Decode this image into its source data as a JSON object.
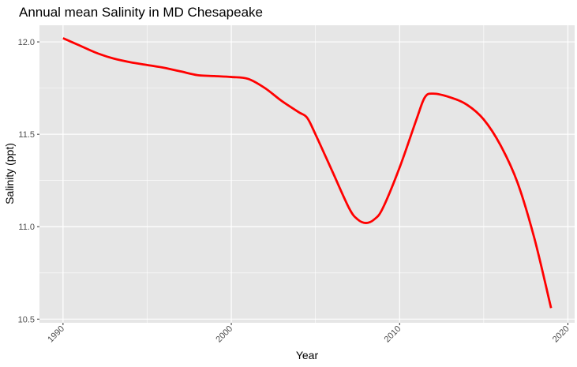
{
  "chart_data": {
    "type": "line",
    "title": "Annual mean Salinity in MD Chesapeake",
    "xlabel": "Year",
    "ylabel": "Salinity (ppt)",
    "xlim": [
      1988.6,
      2020.4
    ],
    "ylim": [
      10.48,
      12.09
    ],
    "x_ticks": [
      1990,
      2000,
      2010,
      2020
    ],
    "x_minor_ticks": [
      1995,
      2005,
      2015
    ],
    "y_ticks": [
      10.5,
      11.0,
      11.5,
      12.0
    ],
    "y_minor_ticks": [
      10.75,
      11.25,
      11.75
    ],
    "x_tick_labels": [
      "1990",
      "2000",
      "2010",
      "2020"
    ],
    "y_tick_labels": [
      "10.5",
      "11.0",
      "11.5",
      "12.0"
    ],
    "grid": true,
    "legend": "none",
    "colors": {
      "panel": "#e6e6e6",
      "grid": "#ffffff",
      "line": "#ff0000"
    },
    "series": [
      {
        "x": [
          1990,
          1991,
          1992,
          1993,
          1994,
          1995,
          1996,
          1997,
          1998,
          1999,
          2000,
          2001,
          2002,
          2003,
          2004,
          2004.5,
          2005,
          2006,
          2007,
          2007.5,
          2008,
          2008.5,
          2009,
          2010,
          2011,
          2011.5,
          2012,
          2013,
          2014,
          2015,
          2016,
          2017,
          2018,
          2019
        ],
        "values": [
          12.02,
          11.98,
          11.94,
          11.91,
          11.89,
          11.875,
          11.86,
          11.84,
          11.82,
          11.815,
          11.81,
          11.8,
          11.75,
          11.68,
          11.62,
          11.59,
          11.5,
          11.3,
          11.1,
          11.04,
          11.02,
          11.04,
          11.1,
          11.32,
          11.58,
          11.7,
          11.72,
          11.7,
          11.66,
          11.58,
          11.44,
          11.24,
          10.94,
          10.56
        ]
      }
    ]
  }
}
